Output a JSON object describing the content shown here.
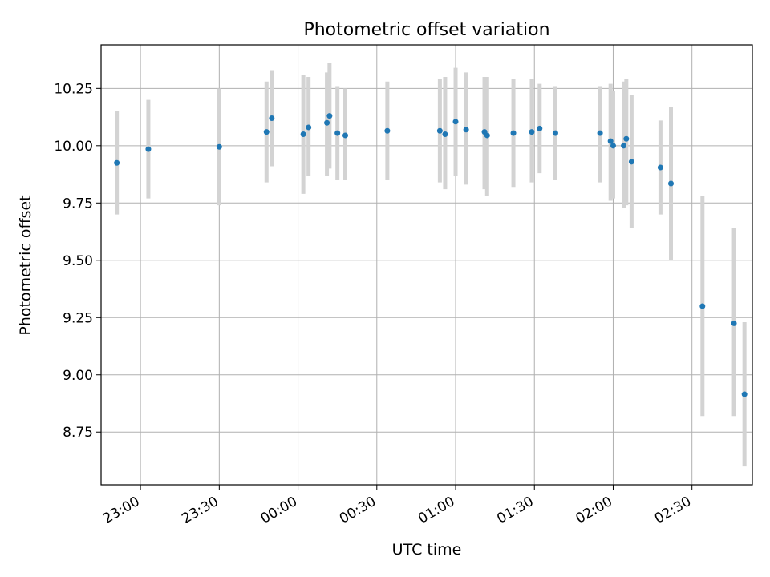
{
  "chart_data": {
    "type": "scatter",
    "title": "Photometric offset variation",
    "xlabel": "UTC time",
    "ylabel": "Photometric offset",
    "x_axis": {
      "type": "time",
      "range": [
        "22:45",
        "02:53"
      ],
      "ticks": [
        "23:00",
        "23:30",
        "00:00",
        "00:30",
        "01:00",
        "01:30",
        "02:00",
        "02:30"
      ]
    },
    "y_axis": {
      "range": [
        8.52,
        10.44
      ],
      "ticks": [
        "8.75",
        "9.00",
        "9.25",
        "9.50",
        "9.75",
        "10.00",
        "10.25"
      ]
    },
    "grid": true,
    "colors": {
      "point": "#1f77b4",
      "errorbar": "#d3d3d3",
      "grid": "#b0b0b0"
    },
    "series": [
      {
        "points": [
          {
            "x": "22:51",
            "y": 9.925,
            "lo": 9.7,
            "hi": 10.15
          },
          {
            "x": "23:03",
            "y": 9.985,
            "lo": 9.77,
            "hi": 10.2
          },
          {
            "x": "23:30",
            "y": 9.995,
            "lo": 9.74,
            "hi": 10.25
          },
          {
            "x": "23:48",
            "y": 10.06,
            "lo": 9.84,
            "hi": 10.28
          },
          {
            "x": "23:50",
            "y": 10.12,
            "lo": 9.91,
            "hi": 10.33
          },
          {
            "x": "00:02",
            "y": 10.05,
            "lo": 9.79,
            "hi": 10.31
          },
          {
            "x": "00:04",
            "y": 10.08,
            "lo": 9.87,
            "hi": 10.3
          },
          {
            "x": "00:11",
            "y": 10.1,
            "lo": 9.87,
            "hi": 10.32
          },
          {
            "x": "00:12",
            "y": 10.13,
            "lo": 9.9,
            "hi": 10.36
          },
          {
            "x": "00:15",
            "y": 10.055,
            "lo": 9.85,
            "hi": 10.26
          },
          {
            "x": "00:18",
            "y": 10.045,
            "lo": 9.85,
            "hi": 10.25
          },
          {
            "x": "00:34",
            "y": 10.065,
            "lo": 9.85,
            "hi": 10.28
          },
          {
            "x": "00:54",
            "y": 10.065,
            "lo": 9.84,
            "hi": 10.29
          },
          {
            "x": "00:56",
            "y": 10.05,
            "lo": 9.81,
            "hi": 10.3
          },
          {
            "x": "01:00",
            "y": 10.105,
            "lo": 9.87,
            "hi": 10.34
          },
          {
            "x": "01:04",
            "y": 10.07,
            "lo": 9.83,
            "hi": 10.32
          },
          {
            "x": "01:11",
            "y": 10.06,
            "lo": 9.81,
            "hi": 10.3
          },
          {
            "x": "01:12",
            "y": 10.045,
            "lo": 9.78,
            "hi": 10.3
          },
          {
            "x": "01:22",
            "y": 10.055,
            "lo": 9.82,
            "hi": 10.29
          },
          {
            "x": "01:29",
            "y": 10.06,
            "lo": 9.84,
            "hi": 10.29
          },
          {
            "x": "01:32",
            "y": 10.075,
            "lo": 9.88,
            "hi": 10.27
          },
          {
            "x": "01:38",
            "y": 10.055,
            "lo": 9.85,
            "hi": 10.26
          },
          {
            "x": "01:55",
            "y": 10.055,
            "lo": 9.84,
            "hi": 10.26
          },
          {
            "x": "01:59",
            "y": 10.02,
            "lo": 9.76,
            "hi": 10.27
          },
          {
            "x": "02:00",
            "y": 10.0,
            "lo": 9.77,
            "hi": 10.24
          },
          {
            "x": "02:04",
            "y": 10.0,
            "lo": 9.73,
            "hi": 10.28
          },
          {
            "x": "02:05",
            "y": 10.03,
            "lo": 9.74,
            "hi": 10.29
          },
          {
            "x": "02:07",
            "y": 9.93,
            "lo": 9.64,
            "hi": 10.22
          },
          {
            "x": "02:18",
            "y": 9.905,
            "lo": 9.7,
            "hi": 10.11
          },
          {
            "x": "02:22",
            "y": 9.835,
            "lo": 9.5,
            "hi": 10.17
          },
          {
            "x": "02:34",
            "y": 9.3,
            "lo": 8.82,
            "hi": 9.78
          },
          {
            "x": "02:46",
            "y": 9.225,
            "lo": 8.82,
            "hi": 9.64
          },
          {
            "x": "02:50",
            "y": 8.915,
            "lo": 8.6,
            "hi": 9.23
          }
        ]
      }
    ]
  }
}
